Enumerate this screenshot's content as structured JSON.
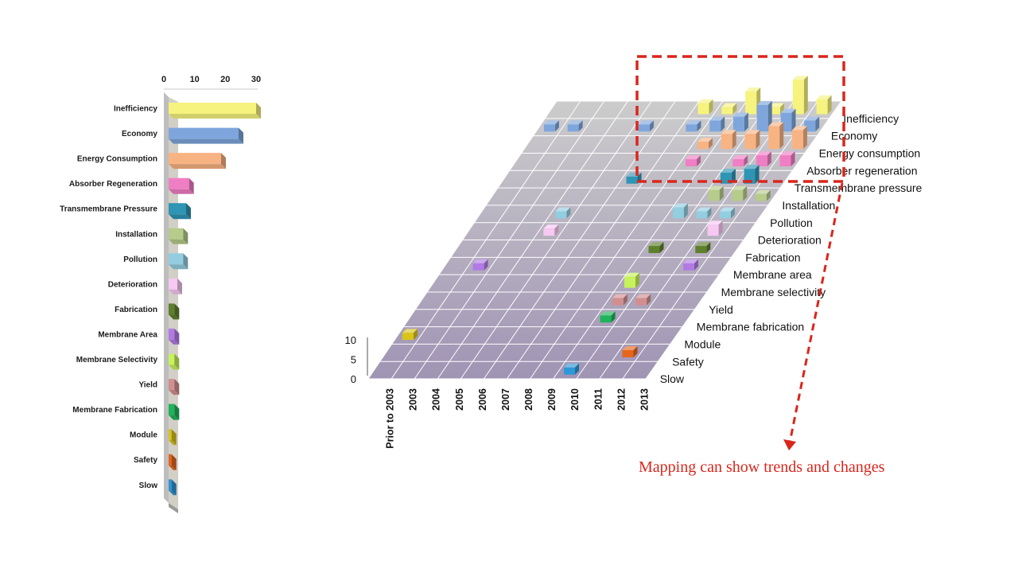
{
  "colors": {
    "Inefficiency": "#f6f37e",
    "Economy": "#7ea6dc",
    "Energy Consumption": "#f8b382",
    "Absorber Regeneration": "#f07ec4",
    "Transmembrane Pressure": "#2f95b4",
    "Installation": "#b6cc8b",
    "Pollution": "#93cde0",
    "Deterioration": "#f7c8f2",
    "Fabrication": "#5e7f2c",
    "Membrane Area": "#b27be4",
    "Membrane Selectivity": "#c7f25c",
    "Yield": "#d28f8f",
    "Membrane Fabrication": "#1fb35a",
    "Module": "#d9c41a",
    "Safety": "#e6651c",
    "Slow": "#2d97d7",
    "floor_light": "#cccccc",
    "floor_dark": "#a094b4",
    "highlight_box": "#d9261c",
    "caption": "#d9261c"
  },
  "chart_data": [
    {
      "type": "bar",
      "orientation": "horizontal",
      "style": "3d",
      "categories": [
        "Inefficiency",
        "Economy",
        "Energy Consumption",
        "Absorber Regeneration",
        "Transmembrane Pressure",
        "Installation",
        "Pollution",
        "Deterioration",
        "Fabrication",
        "Membrane Area",
        "Membrane Selectivity",
        "Yield",
        "Membrane Fabrication",
        "Module",
        "Safety",
        "Slow"
      ],
      "values": [
        30,
        24,
        18,
        7,
        6,
        5,
        5,
        3,
        2,
        2,
        2,
        2,
        2,
        1,
        1,
        1
      ],
      "xlim": [
        0,
        30
      ],
      "x_ticks": [
        "0",
        "10",
        "20",
        "30"
      ],
      "x_tick_position": "top"
    },
    {
      "type": "bar3d",
      "x_categories": [
        "Prior to 2003",
        "2003",
        "2004",
        "2005",
        "2006",
        "2007",
        "2008",
        "2009",
        "2010",
        "2011",
        "2012",
        "2013"
      ],
      "y_categories": [
        "Inefficiency",
        "Economy",
        "Energy consumption",
        "Absorber regeneration",
        "Transmembrane pressure",
        "Installation",
        "Pollution",
        "Deterioration",
        "Fabrication",
        "Membrane area",
        "Membrane selectivity",
        "Yield",
        "Membrane fabrication",
        "Module",
        "Safety",
        "Slow"
      ],
      "z_ticks": [
        "0",
        "5",
        "10"
      ],
      "zlim": [
        0,
        10
      ],
      "cells": [
        {
          "x": "2008",
          "y": "Inefficiency",
          "z": 2
        },
        {
          "x": "2009",
          "y": "Inefficiency",
          "z": 1
        },
        {
          "x": "2010",
          "y": "Inefficiency",
          "z": 5
        },
        {
          "x": "2011",
          "y": "Inefficiency",
          "z": 1
        },
        {
          "x": "2012",
          "y": "Inefficiency",
          "z": 8
        },
        {
          "x": "2013",
          "y": "Inefficiency",
          "z": 3
        },
        {
          "x": "Prior to 2003",
          "y": "Economy",
          "z": 1
        },
        {
          "x": "2003",
          "y": "Economy",
          "z": 1
        },
        {
          "x": "2006",
          "y": "Economy",
          "z": 1
        },
        {
          "x": "2008",
          "y": "Economy",
          "z": 1
        },
        {
          "x": "2009",
          "y": "Economy",
          "z": 2
        },
        {
          "x": "2010",
          "y": "Economy",
          "z": 3
        },
        {
          "x": "2011",
          "y": "Economy",
          "z": 6
        },
        {
          "x": "2012",
          "y": "Economy",
          "z": 4
        },
        {
          "x": "2013",
          "y": "Economy",
          "z": 2
        },
        {
          "x": "2009",
          "y": "Energy consumption",
          "z": 1
        },
        {
          "x": "2010",
          "y": "Energy consumption",
          "z": 3
        },
        {
          "x": "2011",
          "y": "Energy consumption",
          "z": 3
        },
        {
          "x": "2012",
          "y": "Energy consumption",
          "z": 5
        },
        {
          "x": "2013",
          "y": "Energy consumption",
          "z": 4
        },
        {
          "x": "2009",
          "y": "Absorber regeneration",
          "z": 1
        },
        {
          "x": "2011",
          "y": "Absorber regeneration",
          "z": 1
        },
        {
          "x": "2012",
          "y": "Absorber regeneration",
          "z": 2
        },
        {
          "x": "2013",
          "y": "Absorber regeneration",
          "z": 2
        },
        {
          "x": "2007",
          "y": "Transmembrane pressure",
          "z": 1
        },
        {
          "x": "2011",
          "y": "Transmembrane pressure",
          "z": 2
        },
        {
          "x": "2012",
          "y": "Transmembrane pressure",
          "z": 3
        },
        {
          "x": "2011",
          "y": "Installation",
          "z": 2
        },
        {
          "x": "2012",
          "y": "Installation",
          "z": 2
        },
        {
          "x": "2013",
          "y": "Installation",
          "z": 1
        },
        {
          "x": "2005",
          "y": "Pollution",
          "z": 1
        },
        {
          "x": "2010",
          "y": "Pollution",
          "z": 2
        },
        {
          "x": "2011",
          "y": "Pollution",
          "z": 1
        },
        {
          "x": "2012",
          "y": "Pollution",
          "z": 1
        },
        {
          "x": "2005",
          "y": "Deterioration",
          "z": 1
        },
        {
          "x": "2012",
          "y": "Deterioration",
          "z": 2
        },
        {
          "x": "2010",
          "y": "Fabrication",
          "z": 1
        },
        {
          "x": "2012",
          "y": "Fabrication",
          "z": 1
        },
        {
          "x": "2003",
          "y": "Membrane area",
          "z": 1
        },
        {
          "x": "2012",
          "y": "Membrane area",
          "z": 1
        },
        {
          "x": "2010",
          "y": "Membrane selectivity",
          "z": 2
        },
        {
          "x": "2010",
          "y": "Yield",
          "z": 1
        },
        {
          "x": "2011",
          "y": "Yield",
          "z": 1
        },
        {
          "x": "2010",
          "y": "Membrane fabrication",
          "z": 1
        },
        {
          "x": "Prior to 2003",
          "y": "Module",
          "z": 1
        },
        {
          "x": "2012",
          "y": "Safety",
          "z": 1
        },
        {
          "x": "2010",
          "y": "Slow",
          "z": 1
        }
      ]
    }
  ],
  "annotation": {
    "caption": "Mapping can show trends and changes"
  }
}
